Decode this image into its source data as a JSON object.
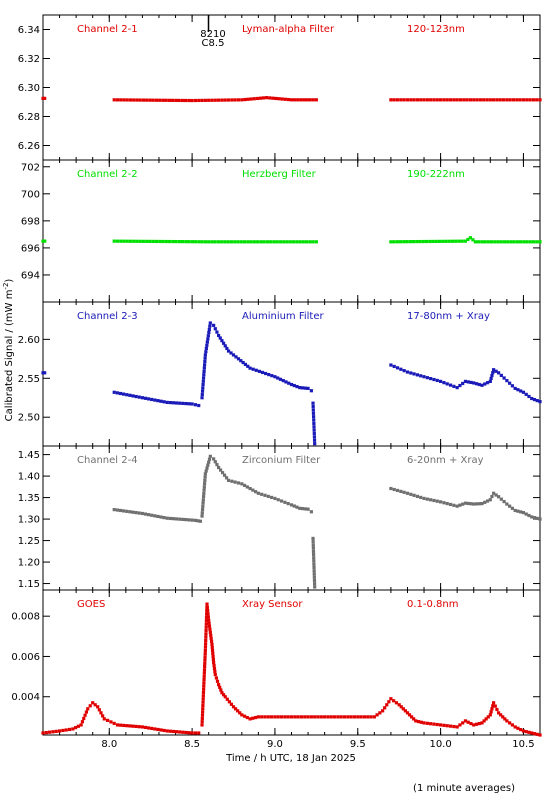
{
  "figure": {
    "xlabel": "Time / h UTC, 18 Jan 2025",
    "ylabel": "Calibrated Signal / (mW m",
    "ylabel_sup": "-2",
    "ylabel_close": ")",
    "note": "(1 minute averages)",
    "event_marker_labels": [
      "8210",
      "C8.5"
    ]
  },
  "chart_data": [
    {
      "type": "scatter",
      "channel": "Channel 2-1",
      "filter": "Lyman-alpha Filter",
      "band": "120-123nm",
      "color": "#e00000",
      "xlim": [
        7.6,
        10.6
      ],
      "ylim": [
        6.25,
        6.35
      ],
      "yticks": [
        6.26,
        6.28,
        6.3,
        6.32,
        6.34
      ],
      "ytick_labels": [
        "6.26",
        "6.28",
        "6.30",
        "6.32",
        "6.34"
      ],
      "segments": [
        {
          "x": [
            7.6,
            7.61
          ],
          "y": [
            6.2925,
            6.2925
          ]
        },
        {
          "x": [
            8.03,
            8.5,
            8.8,
            8.95,
            9.1,
            9.25
          ],
          "y": [
            6.2915,
            6.291,
            6.2915,
            6.293,
            6.2915,
            6.2915
          ]
        },
        {
          "x": [
            9.7,
            10.0,
            10.3,
            10.6
          ],
          "y": [
            6.2915,
            6.2915,
            6.2915,
            6.2915
          ]
        }
      ]
    },
    {
      "type": "scatter",
      "channel": "Channel 2-2",
      "filter": "Herzberg Filter",
      "band": "190-222nm",
      "color": "#00e000",
      "xlim": [
        7.6,
        10.6
      ],
      "ylim": [
        692.0,
        702.5
      ],
      "yticks": [
        694,
        696,
        698,
        700,
        702
      ],
      "ytick_labels": [
        "694",
        "696",
        "698",
        "700",
        "702"
      ],
      "segments": [
        {
          "x": [
            7.6,
            7.61
          ],
          "y": [
            696.5,
            696.5
          ]
        },
        {
          "x": [
            8.03,
            8.6,
            9.25
          ],
          "y": [
            696.5,
            696.45,
            696.45
          ]
        },
        {
          "x": [
            9.7,
            10.15,
            10.18,
            10.21,
            10.6
          ],
          "y": [
            696.45,
            696.5,
            696.75,
            696.45,
            696.45
          ]
        }
      ]
    },
    {
      "type": "scatter",
      "channel": "Channel 2-3",
      "filter": "Aluminium Filter",
      "band": "17-80nm + Xray",
      "color": "#1a1ab8",
      "xlim": [
        7.6,
        10.6
      ],
      "ylim": [
        2.463,
        2.648
      ],
      "yticks": [
        2.5,
        2.55,
        2.6
      ],
      "ytick_labels": [
        "2.50",
        "2.55",
        "2.60"
      ],
      "segments": [
        {
          "x": [
            7.6,
            7.61
          ],
          "y": [
            2.557,
            2.557
          ]
        },
        {
          "x": [
            8.03,
            8.2,
            8.35,
            8.5,
            8.54
          ],
          "y": [
            2.532,
            2.525,
            2.519,
            2.517,
            2.515
          ]
        },
        {
          "x": [
            8.56,
            8.58,
            8.61,
            8.63,
            8.66,
            8.72,
            8.78,
            8.85,
            9.0,
            9.1,
            9.15,
            9.2,
            9.22
          ],
          "y": [
            2.525,
            2.58,
            2.621,
            2.618,
            2.605,
            2.585,
            2.575,
            2.563,
            2.552,
            2.542,
            2.538,
            2.537,
            2.534
          ]
        },
        {
          "x": [
            9.23,
            9.24
          ],
          "y": [
            2.518,
            2.466
          ]
        },
        {
          "x": [
            9.7,
            9.8,
            9.9,
            10.0,
            10.1,
            10.15,
            10.2,
            10.25,
            10.3,
            10.32,
            10.35,
            10.4,
            10.45,
            10.5,
            10.55,
            10.6
          ],
          "y": [
            2.567,
            2.558,
            2.552,
            2.546,
            2.538,
            2.546,
            2.544,
            2.541,
            2.546,
            2.561,
            2.557,
            2.547,
            2.537,
            2.532,
            2.524,
            2.52
          ]
        }
      ]
    },
    {
      "type": "scatter",
      "channel": "Channel 2-4",
      "filter": "Zirconium Filter",
      "band": "6-20nm + Xray",
      "color": "#707070",
      "xlim": [
        7.6,
        10.6
      ],
      "ylim": [
        1.135,
        1.47
      ],
      "yticks": [
        1.15,
        1.2,
        1.25,
        1.3,
        1.35,
        1.4,
        1.45
      ],
      "ytick_labels": [
        "1.15",
        "1.20",
        "1.25",
        "1.30",
        "1.35",
        "1.40",
        "1.45"
      ],
      "segments": [
        {
          "x": [
            8.03,
            8.2,
            8.35,
            8.52,
            8.55
          ],
          "y": [
            1.322,
            1.313,
            1.302,
            1.297,
            1.295
          ]
        },
        {
          "x": [
            8.56,
            8.58,
            8.61,
            8.63,
            8.66,
            8.72,
            8.8,
            8.9,
            9.0,
            9.1,
            9.15,
            9.2,
            9.22
          ],
          "y": [
            1.307,
            1.405,
            1.446,
            1.44,
            1.42,
            1.39,
            1.382,
            1.36,
            1.348,
            1.333,
            1.325,
            1.323,
            1.317
          ]
        },
        {
          "x": [
            9.23,
            9.24
          ],
          "y": [
            1.255,
            1.142
          ]
        },
        {
          "x": [
            9.7,
            9.8,
            9.9,
            10.0,
            10.1,
            10.15,
            10.2,
            10.25,
            10.3,
            10.32,
            10.35,
            10.4,
            10.45,
            10.5,
            10.55,
            10.6
          ],
          "y": [
            1.371,
            1.36,
            1.348,
            1.34,
            1.33,
            1.337,
            1.335,
            1.336,
            1.345,
            1.36,
            1.352,
            1.335,
            1.32,
            1.315,
            1.305,
            1.3
          ]
        }
      ]
    },
    {
      "type": "scatter",
      "channel": "GOES",
      "filter": "Xray Sensor",
      "band": "0.1-0.8nm",
      "color": "#e00000",
      "xlim": [
        7.6,
        10.6
      ],
      "ylim": [
        0.0021,
        0.0093
      ],
      "yticks": [
        0.004,
        0.006,
        0.008
      ],
      "ytick_labels": [
        "0.004",
        "0.006",
        "0.008"
      ],
      "segments": [
        {
          "x": [
            7.6,
            7.7,
            7.78,
            7.83,
            7.87,
            7.9,
            7.93,
            7.97,
            8.05,
            8.2,
            8.35,
            8.5,
            8.54
          ],
          "y": [
            0.0022,
            0.0023,
            0.0024,
            0.0026,
            0.0034,
            0.0037,
            0.0035,
            0.0029,
            0.0026,
            0.0025,
            0.0023,
            0.0022,
            0.0022
          ]
        },
        {
          "x": [
            8.56,
            8.58,
            8.59,
            8.6,
            8.61,
            8.62,
            8.63,
            8.64,
            8.66,
            8.68,
            8.7,
            8.75,
            8.8,
            8.85,
            8.9,
            9.0,
            9.2,
            9.4,
            9.6,
            9.65,
            9.7,
            9.75,
            9.8,
            9.85,
            9.9,
            10.0,
            10.1,
            10.15,
            10.2,
            10.25,
            10.3,
            10.32,
            10.35,
            10.4,
            10.45,
            10.5,
            10.55,
            10.6
          ],
          "y": [
            0.0026,
            0.0063,
            0.0086,
            0.0078,
            0.0072,
            0.0066,
            0.0057,
            0.0051,
            0.0046,
            0.0042,
            0.004,
            0.0035,
            0.0031,
            0.0029,
            0.003,
            0.003,
            0.003,
            0.003,
            0.003,
            0.0033,
            0.0039,
            0.0036,
            0.0032,
            0.0028,
            0.0027,
            0.0026,
            0.0025,
            0.0028,
            0.0026,
            0.0027,
            0.0031,
            0.0037,
            0.0032,
            0.0028,
            0.0025,
            0.0023,
            0.0022,
            0.0021
          ]
        }
      ]
    }
  ],
  "xticks": [
    8.0,
    8.5,
    9.0,
    9.5,
    10.0,
    10.5
  ],
  "xtick_labels": [
    "8.0",
    "8.5",
    "9.0",
    "9.5",
    "10.0",
    "10.5"
  ],
  "xminor_step": 0.1
}
